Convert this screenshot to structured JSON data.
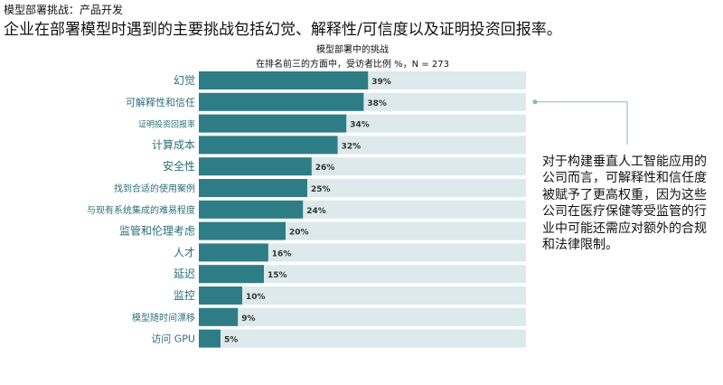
{
  "header": {
    "kicker": "模型部署挑战：产品开发",
    "headline": "企业在部署模型时遇到的主要挑战包括幻觉、解释性/可信度以及证明投资回报率。"
  },
  "chart_data": {
    "type": "bar",
    "orientation": "horizontal",
    "title": "模型部署中的挑战",
    "subtitle": "在排名前三的方面中，受访者比例 %，N = 273",
    "categories": [
      "幻觉",
      "可解释性和信任",
      "证明投资回报率",
      "计算成本",
      "安全性",
      "找到合适的使用案例",
      "与现有系统集成的难易程度",
      "监管和伦理考虑",
      "人才",
      "延迟",
      "监控",
      "模型随时间漂移",
      "访问 GPU"
    ],
    "values": [
      39,
      38,
      34,
      32,
      26,
      25,
      24,
      20,
      16,
      15,
      10,
      9,
      5
    ],
    "value_labels": [
      "39%",
      "38%",
      "34%",
      "32%",
      "26%",
      "25%",
      "24%",
      "20%",
      "16%",
      "15%",
      "10%",
      "9%",
      "5%"
    ],
    "xlim": [
      0,
      100
    ],
    "colors": {
      "bar": "#2e7d86",
      "track": "#dde9ea",
      "label": "#2e6f78"
    }
  },
  "annotation": {
    "text": "对于构建垂直人工智能应用的公司而言，可解释性和信任度被赋予了更高权重，因为这些公司在医疗保健等受监管的行业中可能还需应对额外的合规和法律限制。",
    "colors": {
      "leader_line": "#8fb5b8"
    }
  }
}
